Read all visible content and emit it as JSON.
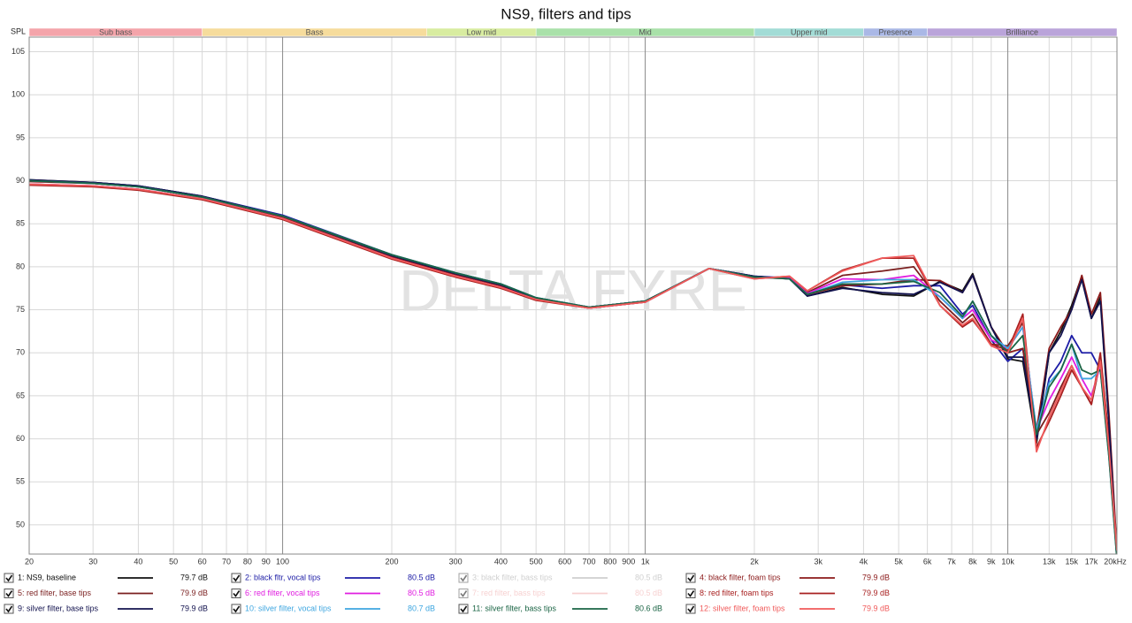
{
  "chart_data": {
    "type": "line",
    "title": "NS9, filters and tips",
    "y_label": "SPL",
    "watermark": "DELTA FYRE",
    "xscale": "log",
    "xlim": [
      20,
      20000
    ],
    "ylim": [
      46.6,
      106.7
    ],
    "yticks": [
      50,
      55,
      60,
      65,
      70,
      75,
      80,
      85,
      90,
      95,
      100,
      105
    ],
    "xticks": [
      20,
      30,
      40,
      50,
      60,
      70,
      80,
      90,
      100,
      200,
      300,
      400,
      500,
      600,
      700,
      800,
      900,
      {
        "value": 1000,
        "label": "1k"
      },
      {
        "value": 2000,
        "label": "2k"
      },
      {
        "value": 3000,
        "label": "3k"
      },
      {
        "value": 4000,
        "label": "4k"
      },
      {
        "value": 5000,
        "label": "5k"
      },
      {
        "value": 6000,
        "label": "6k"
      },
      {
        "value": 7000,
        "label": "7k"
      },
      {
        "value": 8000,
        "label": "8k"
      },
      {
        "value": 9000,
        "label": "9k"
      },
      {
        "value": 10000,
        "label": "10k"
      },
      {
        "value": 13000,
        "label": "13k"
      },
      {
        "value": 15000,
        "label": "15k"
      },
      {
        "value": 17000,
        "label": "17k"
      },
      {
        "value": 20000,
        "label": "20kHz"
      }
    ],
    "grid": true,
    "bands": [
      {
        "name": "Sub bass",
        "from": 20,
        "to": 60,
        "color": "#f4a4aa"
      },
      {
        "name": "Bass",
        "from": 60,
        "to": 250,
        "color": "#f6dc9c"
      },
      {
        "name": "Low mid",
        "from": 250,
        "to": 500,
        "color": "#d8eca0"
      },
      {
        "name": "Mid",
        "from": 500,
        "to": 2000,
        "color": "#a9e1a9"
      },
      {
        "name": "Upper mid",
        "from": 2000,
        "to": 4000,
        "color": "#a2dcd6"
      },
      {
        "name": "Presence",
        "from": 4000,
        "to": 6000,
        "color": "#aab8e6"
      },
      {
        "name": "Brilliance",
        "from": 6000,
        "to": 20000,
        "color": "#baa4da"
      }
    ],
    "x": [
      20,
      30,
      40,
      60,
      100,
      200,
      300,
      400,
      500,
      700,
      1000,
      1500,
      2000,
      2500,
      2800,
      3500,
      4500,
      5500,
      6500,
      7500,
      8000,
      9000,
      10000,
      11000,
      12000,
      13000,
      14000,
      15000,
      16000,
      17000,
      18000,
      19000,
      20000
    ],
    "series": [
      {
        "name": "1: NS9, baseline",
        "color": "#111111",
        "visible": true,
        "level": 79.7,
        "level_label": "79.7 dB",
        "values": [
          90.1,
          89.8,
          89.4,
          88.2,
          85.9,
          81.3,
          79.2,
          77.9,
          76.3,
          75.3,
          76.0,
          79.8,
          78.9,
          78.6,
          76.6,
          77.6,
          76.8,
          76.6,
          78.3,
          77.2,
          79.2,
          73,
          69.3,
          69.0,
          59.5,
          70,
          72.5,
          75.5,
          78.9,
          74,
          76.5,
          62,
          46
        ]
      },
      {
        "name": "2: black fltr, vocal tips",
        "color": "#1c1ca6",
        "visible": true,
        "level": 80.5,
        "level_label": "80.5 dB",
        "values": [
          90.0,
          89.8,
          89.4,
          88.2,
          86.0,
          81.4,
          79.3,
          78.0,
          76.4,
          75.3,
          76.0,
          79.8,
          78.9,
          78.7,
          76.8,
          77.9,
          77.5,
          77.8,
          77.8,
          74.5,
          75.5,
          71.5,
          69.0,
          70.5,
          60,
          67,
          69,
          72,
          70,
          70,
          68,
          60,
          46
        ]
      },
      {
        "name": "3: black filter, bass tips",
        "color": "#a8a8a8",
        "visible": false,
        "level": 80.5,
        "level_label": "80.5 dB",
        "values": [
          90.1,
          89.8,
          89.4,
          88.2,
          85.9,
          81.3,
          79.2,
          77.9,
          76.3,
          75.3,
          76.0,
          79.8,
          78.9,
          78.6,
          76.6,
          77.6,
          76.9,
          76.7,
          78.2,
          77.0,
          79.0,
          73,
          69.5,
          69.2,
          60,
          70,
          72,
          75,
          78.5,
          74,
          76,
          62,
          46
        ]
      },
      {
        "name": "4: black filter, foam tips",
        "color": "#8b1a1a",
        "visible": true,
        "level": 79.9,
        "level_label": "79.9 dB",
        "values": [
          89.9,
          89.7,
          89.3,
          88.1,
          85.8,
          81.2,
          79.1,
          77.8,
          76.3,
          75.3,
          76.0,
          79.8,
          78.8,
          78.6,
          76.8,
          77.8,
          78,
          78.5,
          78.4,
          77,
          79,
          73,
          70,
          70.5,
          61,
          70.5,
          73,
          75,
          79,
          74.5,
          77,
          63,
          47
        ]
      },
      {
        "name": "5: red filter, base tips",
        "color": "#7a1f1f",
        "visible": true,
        "level": 79.9,
        "level_label": "79.9 dB",
        "values": [
          89.6,
          89.4,
          89.0,
          87.9,
          85.6,
          81.0,
          78.9,
          77.6,
          76.2,
          75.2,
          75.9,
          79.8,
          78.7,
          78.8,
          77.0,
          79.0,
          79.5,
          80,
          76,
          73.5,
          74.5,
          71,
          70.8,
          73.5,
          60.5,
          63,
          66,
          68.5,
          66,
          64,
          69,
          60,
          47
        ]
      },
      {
        "name": "6: red filter, vocal tips",
        "color": "#e01ee0",
        "visible": true,
        "level": 80.5,
        "level_label": "80.5 dB",
        "values": [
          89.6,
          89.4,
          89.0,
          87.9,
          85.6,
          81.0,
          78.9,
          77.6,
          76.2,
          75.2,
          75.9,
          79.8,
          78.7,
          78.7,
          76.9,
          78.6,
          78.5,
          79,
          76.5,
          74,
          75,
          71.5,
          70.5,
          73,
          61,
          64.5,
          67,
          69.5,
          67,
          65,
          68.5,
          59,
          47
        ]
      },
      {
        "name": "7: red filter, bass tips",
        "color": "#f0aaaa",
        "visible": false,
        "level": 80.5,
        "level_label": "80.5 dB",
        "values": [
          89.6,
          89.4,
          89.0,
          87.9,
          85.6,
          81.0,
          78.9,
          77.6,
          76.2,
          75.2,
          75.9,
          79.8,
          78.7,
          78.8,
          77.0,
          79.0,
          79.5,
          80,
          76,
          73.5,
          74.5,
          71,
          70.8,
          73.5,
          60.5,
          63,
          66,
          68.5,
          66,
          64,
          69,
          60,
          47
        ]
      },
      {
        "name": "8: red filter, foam tips",
        "color": "#a82020",
        "visible": true,
        "level": 79.9,
        "level_label": "79.9 dB",
        "values": [
          89.5,
          89.3,
          88.9,
          87.8,
          85.5,
          80.9,
          78.8,
          77.5,
          76.1,
          75.2,
          75.9,
          79.8,
          78.6,
          78.9,
          77.2,
          79.6,
          81,
          81,
          75.5,
          73,
          73.8,
          71,
          70.3,
          74.5,
          59,
          62,
          65,
          68,
          66,
          64,
          70,
          60,
          47
        ]
      },
      {
        "name": "9: silver filter, base tips",
        "color": "#12124e",
        "visible": true,
        "level": 79.9,
        "level_label": "79.9 dB",
        "values": [
          90.1,
          89.8,
          89.4,
          88.2,
          85.9,
          81.3,
          79.2,
          77.9,
          76.3,
          75.3,
          76.0,
          79.8,
          78.9,
          78.6,
          76.6,
          77.5,
          77,
          76.8,
          78.2,
          77,
          79,
          73,
          69.5,
          69.5,
          60,
          70,
          72,
          75,
          78.5,
          74,
          76,
          62,
          46
        ]
      },
      {
        "name": "10: silver filter, vocal tips",
        "color": "#3ea6e0",
        "visible": true,
        "level": 80.7,
        "level_label": "80.7 dB",
        "values": [
          90.0,
          89.7,
          89.3,
          88.1,
          85.9,
          81.4,
          79.3,
          78.0,
          76.4,
          75.3,
          76.0,
          79.8,
          78.8,
          78.6,
          76.8,
          78.2,
          78.5,
          78.5,
          76.5,
          74,
          76,
          72,
          70.5,
          73,
          61,
          66.5,
          68,
          71,
          67,
          67,
          68,
          58,
          46
        ]
      },
      {
        "name": "11: silver filter, bass tips",
        "color": "#1a6444",
        "visible": true,
        "level": 80.6,
        "level_label": "80.6 dB",
        "values": [
          90.0,
          89.7,
          89.3,
          88.1,
          85.9,
          81.4,
          79.3,
          78.0,
          76.4,
          75.3,
          76.0,
          79.8,
          78.8,
          78.6,
          76.8,
          78.0,
          78,
          78.3,
          77,
          74.2,
          76,
          72,
          70,
          72,
          60.5,
          66,
          68,
          71,
          68,
          67.5,
          68,
          58,
          46
        ]
      },
      {
        "name": "12: silver filter, foam tips",
        "color": "#f05a5a",
        "visible": true,
        "level": 79.9,
        "level_label": "79.9 dB",
        "values": [
          89.6,
          89.4,
          89.0,
          87.9,
          85.6,
          81.0,
          78.9,
          77.6,
          76.2,
          75.2,
          75.9,
          79.8,
          78.6,
          78.9,
          77.2,
          79.5,
          81,
          81.3,
          75.5,
          73.2,
          74,
          70.8,
          70,
          74,
          58.5,
          62.5,
          65.5,
          68.5,
          66,
          64.5,
          69,
          59,
          47
        ]
      }
    ]
  }
}
